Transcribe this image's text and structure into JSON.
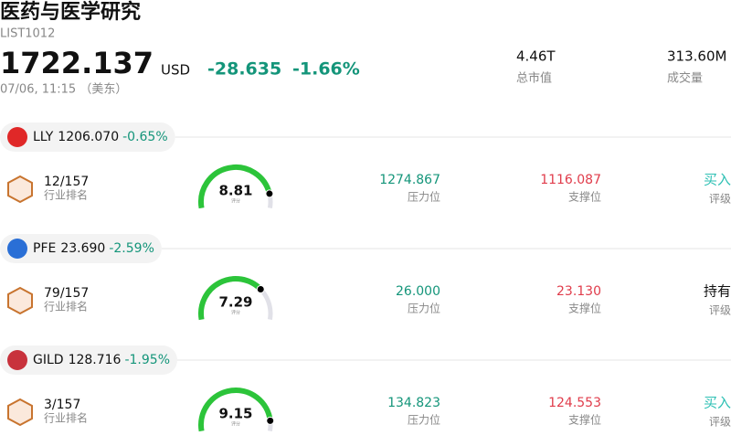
{
  "header": {
    "title": "医药与医学研究",
    "code": "LIST1012",
    "price": "1722.137",
    "currency": "USD",
    "change": "-28.635",
    "change_pct": "-1.66%",
    "time": "07/06, 11:15 （美东）",
    "market_cap": {
      "value": "4.46T",
      "label": "总市值"
    },
    "volume": {
      "value": "313.60M",
      "label": "成交量"
    }
  },
  "stocks": [
    {
      "ticker": "LLY",
      "price": "1206.070",
      "change": "-0.65%",
      "rank": "12/157",
      "rank_label": "行业排名",
      "score": 8.81,
      "score_label": "评分",
      "resistance": "1274.867",
      "resistance_label": "压力位",
      "support": "1116.087",
      "support_label": "支撑位",
      "rating": "买入",
      "rating_label": "评级",
      "rating_color": "#2bbfb3"
    },
    {
      "ticker": "PFE",
      "price": "23.690",
      "change": "-2.59%",
      "rank": "79/157",
      "rank_label": "行业排名",
      "score": 7.29,
      "score_label": "评分",
      "resistance": "26.000",
      "resistance_label": "压力位",
      "support": "23.130",
      "support_label": "支撑位",
      "rating": "持有",
      "rating_label": "评级",
      "rating_color": "#111111"
    },
    {
      "ticker": "GILD",
      "price": "128.716",
      "change": "-1.95%",
      "rank": "3/157",
      "rank_label": "行业排名",
      "score": 9.15,
      "score_label": "评分",
      "resistance": "134.823",
      "resistance_label": "压力位",
      "support": "124.553",
      "support_label": "支撑位",
      "rating": "买入",
      "rating_label": "评级",
      "rating_color": "#2bbfb3"
    }
  ]
}
